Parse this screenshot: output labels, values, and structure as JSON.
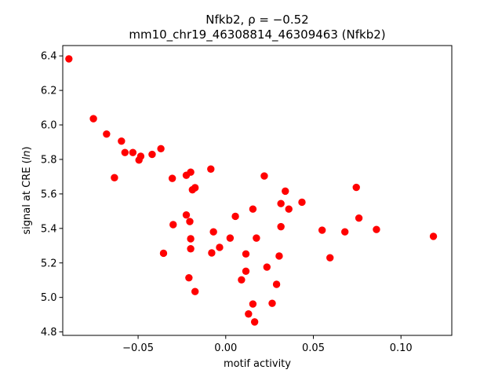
{
  "chart_data": {
    "type": "scatter",
    "title_line1": "Nfkb2, ρ = −0.52",
    "title_line2": "mm10_chr19_46308814_46309463 (Nfkb2)",
    "xlabel": "motif activity",
    "ylabel_prefix": "signal at CRE (",
    "ylabel_italic": "ln",
    "ylabel_suffix": ")",
    "xlim": [
      -0.093,
      0.129
    ],
    "ylim": [
      4.78,
      6.46
    ],
    "xticks": [
      -0.05,
      0.0,
      0.05,
      0.1
    ],
    "xtick_labels": [
      "−0.05",
      "0.00",
      "0.05",
      "0.10"
    ],
    "yticks": [
      4.8,
      5.0,
      5.2,
      5.4,
      5.6,
      5.8,
      6.0,
      6.2,
      6.4
    ],
    "ytick_labels": [
      "4.8",
      "5.0",
      "5.2",
      "5.4",
      "5.6",
      "5.8",
      "6.0",
      "6.2",
      "6.4"
    ],
    "grid": false,
    "marker_color": "#ff0000",
    "points": [
      {
        "x": -0.0895,
        "y": 6.383
      },
      {
        "x": -0.0755,
        "y": 6.036
      },
      {
        "x": -0.068,
        "y": 5.947
      },
      {
        "x": -0.0595,
        "y": 5.906
      },
      {
        "x": -0.0575,
        "y": 5.84
      },
      {
        "x": -0.053,
        "y": 5.84
      },
      {
        "x": -0.0485,
        "y": 5.818
      },
      {
        "x": -0.0495,
        "y": 5.796
      },
      {
        "x": -0.042,
        "y": 5.829
      },
      {
        "x": -0.037,
        "y": 5.862
      },
      {
        "x": -0.0635,
        "y": 5.694
      },
      {
        "x": -0.0305,
        "y": 5.69
      },
      {
        "x": -0.0225,
        "y": 5.708
      },
      {
        "x": -0.02,
        "y": 5.726
      },
      {
        "x": -0.0085,
        "y": 5.744
      },
      {
        "x": -0.0175,
        "y": 5.636
      },
      {
        "x": -0.019,
        "y": 5.624
      },
      {
        "x": 0.022,
        "y": 5.704
      },
      {
        "x": 0.034,
        "y": 5.616
      },
      {
        "x": 0.0745,
        "y": 5.638
      },
      {
        "x": 0.0315,
        "y": 5.544
      },
      {
        "x": 0.0435,
        "y": 5.552
      },
      {
        "x": 0.036,
        "y": 5.512
      },
      {
        "x": 0.0155,
        "y": 5.512
      },
      {
        "x": 0.0055,
        "y": 5.47
      },
      {
        "x": -0.0225,
        "y": 5.478
      },
      {
        "x": -0.0205,
        "y": 5.44
      },
      {
        "x": 0.076,
        "y": 5.46
      },
      {
        "x": -0.03,
        "y": 5.422
      },
      {
        "x": 0.0315,
        "y": 5.41
      },
      {
        "x": 0.055,
        "y": 5.39
      },
      {
        "x": 0.086,
        "y": 5.394
      },
      {
        "x": 0.068,
        "y": 5.38
      },
      {
        "x": -0.007,
        "y": 5.38
      },
      {
        "x": 0.1185,
        "y": 5.354
      },
      {
        "x": 0.0025,
        "y": 5.344
      },
      {
        "x": -0.02,
        "y": 5.34
      },
      {
        "x": 0.0175,
        "y": 5.344
      },
      {
        "x": -0.0035,
        "y": 5.29
      },
      {
        "x": -0.02,
        "y": 5.282
      },
      {
        "x": -0.0355,
        "y": 5.256
      },
      {
        "x": -0.008,
        "y": 5.258
      },
      {
        "x": 0.0115,
        "y": 5.252
      },
      {
        "x": 0.0305,
        "y": 5.24
      },
      {
        "x": 0.0595,
        "y": 5.23
      },
      {
        "x": 0.0235,
        "y": 5.176
      },
      {
        "x": 0.0115,
        "y": 5.152
      },
      {
        "x": -0.021,
        "y": 5.114
      },
      {
        "x": 0.009,
        "y": 5.102
      },
      {
        "x": 0.029,
        "y": 5.076
      },
      {
        "x": -0.0175,
        "y": 5.034
      },
      {
        "x": 0.0155,
        "y": 4.962
      },
      {
        "x": 0.0265,
        "y": 4.966
      },
      {
        "x": 0.013,
        "y": 4.904
      },
      {
        "x": 0.0165,
        "y": 4.858
      }
    ]
  }
}
